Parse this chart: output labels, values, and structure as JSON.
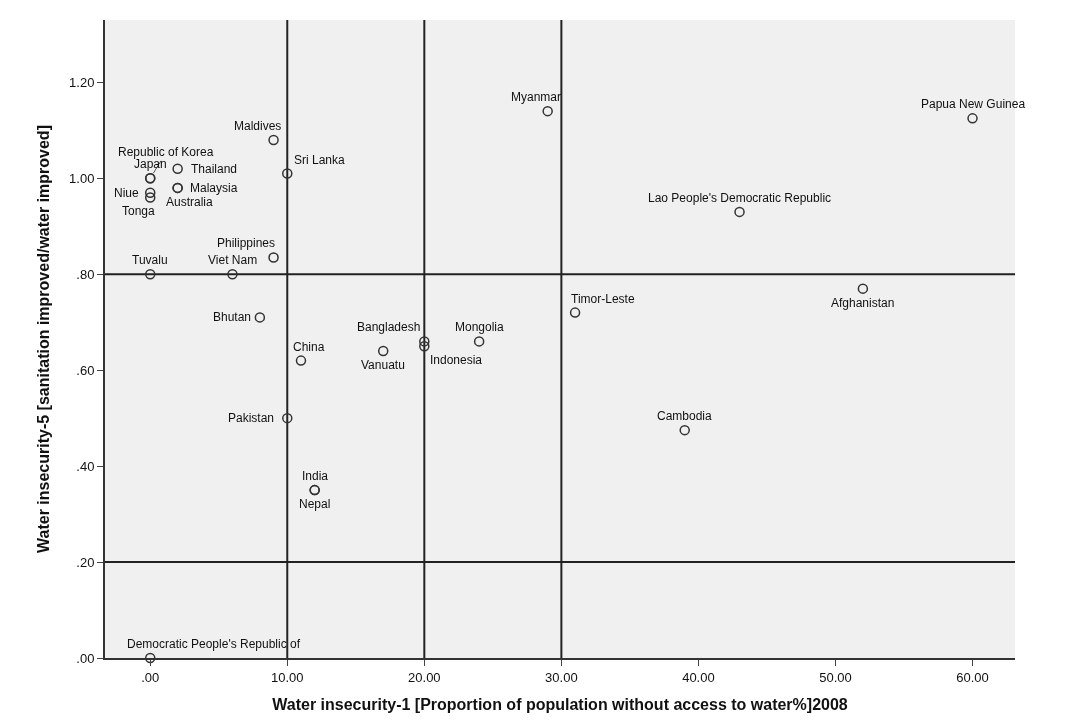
{
  "chart_data": {
    "type": "scatter",
    "xlabel": "Water insecurity-1 [Proportion of population without access to water%]2008",
    "ylabel": "Water insecurity-5 [sanitation improved/water improved]",
    "xlim": [
      -3.3,
      63.1
    ],
    "ylim": [
      0,
      1.33
    ],
    "xticks": [
      {
        "value": 0,
        "label": ".00"
      },
      {
        "value": 10,
        "label": "10.00"
      },
      {
        "value": 20,
        "label": "20.00"
      },
      {
        "value": 30,
        "label": "30.00"
      },
      {
        "value": 40,
        "label": "40.00"
      },
      {
        "value": 50,
        "label": "50.00"
      },
      {
        "value": 60,
        "label": "60.00"
      }
    ],
    "yticks": [
      {
        "value": 0,
        "label": ".00"
      },
      {
        "value": 0.2,
        "label": ".20"
      },
      {
        "value": 0.4,
        "label": ".40"
      },
      {
        "value": 0.6,
        "label": ".60"
      },
      {
        "value": 0.8,
        "label": ".80"
      },
      {
        "value": 1.0,
        "label": "1.00"
      },
      {
        "value": 1.2,
        "label": "1.20"
      }
    ],
    "marker": "circle",
    "color": "#333333",
    "grid": false,
    "legend": false,
    "ref_lines": [
      {
        "axis": "x",
        "value": 10,
        "label": null,
        "color": "#222222"
      },
      {
        "axis": "x",
        "value": 20,
        "label": null,
        "color": "#222222"
      },
      {
        "axis": "x",
        "value": 30,
        "label": null,
        "color": "#222222"
      },
      {
        "axis": "y",
        "value": 0.8,
        "label": null,
        "color": "#222222"
      },
      {
        "axis": "y",
        "value": 0.2,
        "label": null,
        "color": "#222222"
      }
    ],
    "series": [
      {
        "name": "Republic of Korea",
        "x": [
          0
        ],
        "values": [
          1.0
        ]
      },
      {
        "name": "Japan",
        "x": [
          0
        ],
        "values": [
          1.0
        ]
      },
      {
        "name": "Thailand",
        "x": [
          2
        ],
        "values": [
          1.02
        ]
      },
      {
        "name": "Niue",
        "x": [
          0
        ],
        "values": [
          0.97
        ]
      },
      {
        "name": "Australia",
        "x": [
          2
        ],
        "values": [
          0.98
        ]
      },
      {
        "name": "Tonga",
        "x": [
          0
        ],
        "values": [
          0.96
        ]
      },
      {
        "name": "Malaysia",
        "x": [
          2
        ],
        "values": [
          0.98
        ]
      },
      {
        "name": "Maldives",
        "x": [
          9
        ],
        "values": [
          1.08
        ]
      },
      {
        "name": "Sri Lanka",
        "x": [
          10
        ],
        "values": [
          1.01
        ]
      },
      {
        "name": "Philippines",
        "x": [
          9
        ],
        "values": [
          0.835
        ]
      },
      {
        "name": "Tuvalu",
        "x": [
          0
        ],
        "values": [
          0.8
        ]
      },
      {
        "name": "Viet Nam",
        "x": [
          6
        ],
        "values": [
          0.8
        ]
      },
      {
        "name": "Bhutan",
        "x": [
          8
        ],
        "values": [
          0.71
        ]
      },
      {
        "name": "China",
        "x": [
          11
        ],
        "values": [
          0.62
        ]
      },
      {
        "name": "Vanuatu",
        "x": [
          17
        ],
        "values": [
          0.64
        ]
      },
      {
        "name": "Bangladesh",
        "x": [
          20
        ],
        "values": [
          0.66
        ]
      },
      {
        "name": "Indonesia",
        "x": [
          20
        ],
        "values": [
          0.65
        ]
      },
      {
        "name": "Mongolia",
        "x": [
          24
        ],
        "values": [
          0.66
        ]
      },
      {
        "name": "Pakistan",
        "x": [
          10
        ],
        "values": [
          0.5
        ]
      },
      {
        "name": "India",
        "x": [
          12
        ],
        "values": [
          0.35
        ]
      },
      {
        "name": "Nepal",
        "x": [
          12
        ],
        "values": [
          0.35
        ]
      },
      {
        "name": "Democratic People's Republic of",
        "x": [
          0
        ],
        "values": [
          0.0
        ]
      },
      {
        "name": "Myanmar",
        "x": [
          29
        ],
        "values": [
          1.14
        ]
      },
      {
        "name": "Papua New Guinea",
        "x": [
          60
        ],
        "values": [
          1.125
        ]
      },
      {
        "name": "Lao People's Democratic Republic",
        "x": [
          43
        ],
        "values": [
          0.93
        ]
      },
      {
        "name": "Afghanistan",
        "x": [
          52
        ],
        "values": [
          0.77
        ]
      },
      {
        "name": "Timor-Leste",
        "x": [
          31
        ],
        "values": [
          0.72
        ]
      },
      {
        "name": "Cambodia",
        "x": [
          39
        ],
        "values": [
          0.475
        ]
      }
    ]
  }
}
